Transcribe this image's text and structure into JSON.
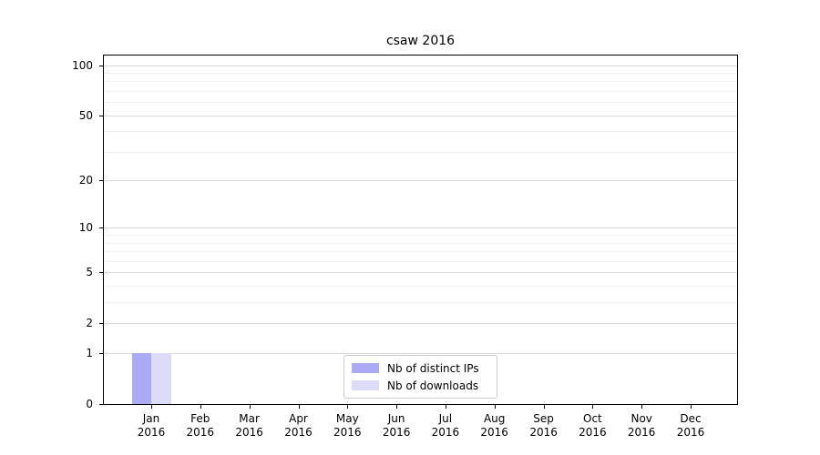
{
  "chart_data": {
    "type": "bar",
    "title": "csaw 2016",
    "x_tick_months": [
      "Jan",
      "Feb",
      "Mar",
      "Apr",
      "May",
      "Jun",
      "Jul",
      "Aug",
      "Sep",
      "Oct",
      "Nov",
      "Dec"
    ],
    "x_tick_year": "2016",
    "series": [
      {
        "name": "Nb of distinct IPs",
        "color": "#aaaaf5",
        "values": [
          1,
          0,
          0,
          0,
          0,
          0,
          0,
          0,
          0,
          0,
          0,
          0
        ]
      },
      {
        "name": "Nb of downloads",
        "color": "#dcdcf9",
        "values": [
          1,
          0,
          0,
          0,
          0,
          0,
          0,
          0,
          0,
          0,
          0,
          0
        ]
      }
    ],
    "yscale": "log10(value+1)",
    "ylim": [
      0,
      114
    ],
    "y_major_ticks": [
      0,
      1,
      2,
      5,
      10,
      20,
      50,
      100
    ],
    "y_minor_gridlines": [
      3,
      4,
      6,
      7,
      8,
      9,
      30,
      40,
      60,
      70,
      80,
      90
    ],
    "grid": "horizontal",
    "legend_position": "lower center"
  },
  "colors": {
    "grid_major": "#d9d9d9",
    "grid_minor": "#f0f0f0",
    "spine": "#000000",
    "background": "#ffffff"
  }
}
